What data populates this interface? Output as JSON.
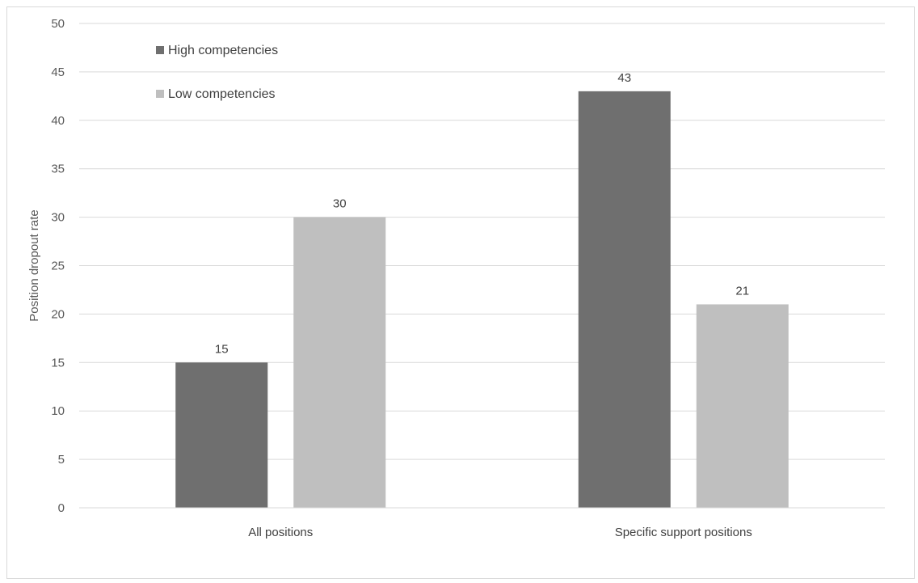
{
  "chart_data": {
    "type": "bar",
    "title": "",
    "xlabel": "",
    "ylabel": "Position dropout rate",
    "categories": [
      "All positions",
      "Specific support positions"
    ],
    "series": [
      {
        "name": "High competencies",
        "values": [
          15,
          43
        ],
        "color": "#6f6f6f"
      },
      {
        "name": "Low competencies",
        "values": [
          30,
          21
        ],
        "color": "#bfbfbf"
      }
    ],
    "ylim": [
      0,
      50
    ],
    "yticks": [
      0,
      5,
      10,
      15,
      20,
      25,
      30,
      35,
      40,
      45,
      50
    ],
    "grid": true,
    "legend_position": "top-left"
  }
}
